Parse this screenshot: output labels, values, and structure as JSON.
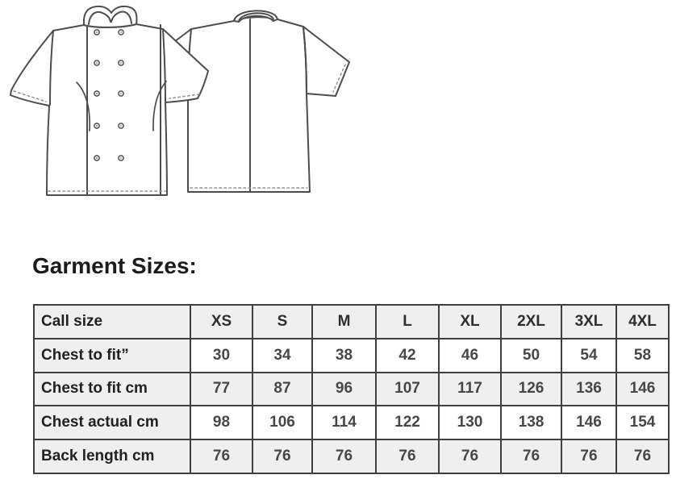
{
  "illustration": {
    "name": "chef-jacket-technical-drawing",
    "views": [
      {
        "id": "front",
        "label": "chef jacket front view, double-breasted, 10 buttons, short sleeves, mandarin collar"
      },
      {
        "id": "back",
        "label": "chef jacket back view, centre back seam, short sleeves"
      }
    ],
    "line_color": "#4d4d4d"
  },
  "heading": {
    "text": "Garment Sizes:"
  },
  "size_table": {
    "columns": [
      "Call size",
      "XS",
      "S",
      "M",
      "L",
      "XL",
      "2XL",
      "3XL",
      "4XL"
    ],
    "rows": [
      {
        "label": "Chest to fit”",
        "values": [
          "30",
          "34",
          "38",
          "42",
          "46",
          "50",
          "54",
          "58"
        ]
      },
      {
        "label": "Chest to fit cm",
        "values": [
          "77",
          "87",
          "96",
          "107",
          "117",
          "126",
          "136",
          "146"
        ]
      },
      {
        "label": "Chest actual cm",
        "values": [
          "98",
          "106",
          "114",
          "122",
          "130",
          "138",
          "146",
          "154"
        ]
      },
      {
        "label": "Back length cm",
        "values": [
          "76",
          "76",
          "76",
          "76",
          "76",
          "76",
          "76",
          "76"
        ]
      }
    ],
    "colors": {
      "band": "#efefef",
      "border": "#3f3f3f",
      "text": "#303030"
    }
  }
}
